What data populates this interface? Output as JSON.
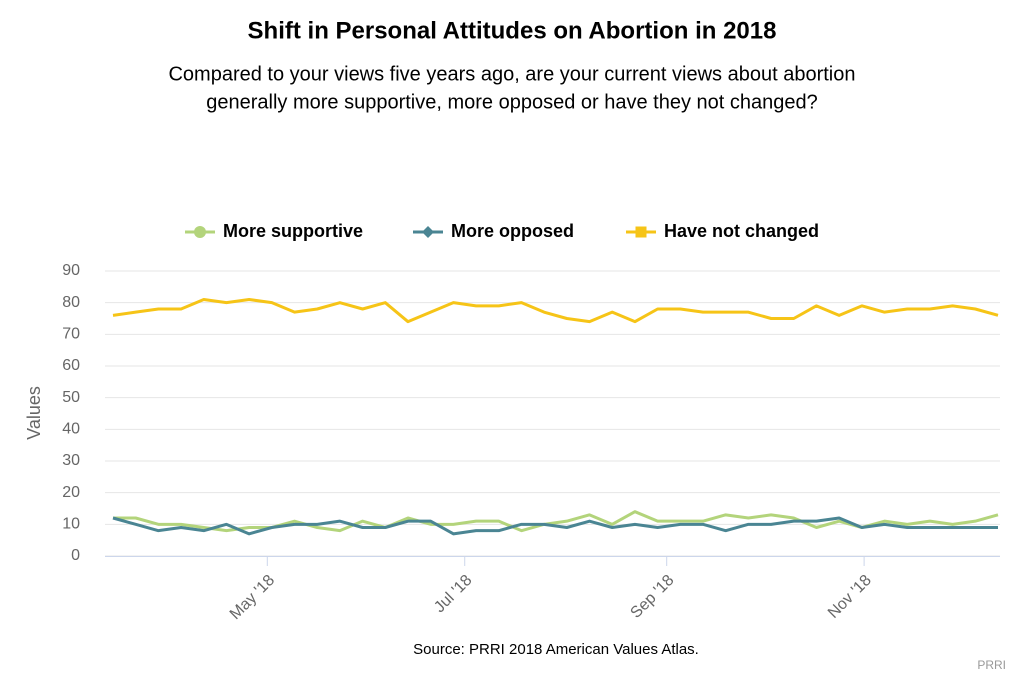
{
  "chart_data": {
    "type": "line",
    "title": "Shift in Personal Attitudes on Abortion in 2018",
    "subtitle": [
      "Compared to your views five years ago, are your current views about abortion",
      "generally more supportive, more opposed or have they not changed?"
    ],
    "y_label": "Values",
    "source": "Source: PRRI 2018 American Values Atlas.",
    "credit": "PRRI",
    "categories": [
      null,
      null,
      null,
      null,
      null,
      null,
      null,
      null,
      null,
      null,
      null,
      null,
      null,
      null,
      null,
      null,
      null,
      null,
      null,
      null,
      null,
      null,
      null,
      null,
      null,
      null,
      null,
      null,
      null,
      null,
      null,
      null,
      null,
      null,
      null,
      null,
      null,
      null,
      null,
      null
    ],
    "xticks": [
      {
        "value": 6.8,
        "label": "May '18"
      },
      {
        "value": 15.5,
        "label": "Jul '18"
      },
      {
        "value": 24.4,
        "label": "Sep '18"
      },
      {
        "value": 33.1,
        "label": "Nov '18"
      }
    ],
    "ylim": [
      0,
      90
    ],
    "yticks": [
      0,
      10,
      20,
      30,
      40,
      50,
      60,
      70,
      80,
      90
    ],
    "legend": "top",
    "series": [
      {
        "name": "More supportive",
        "color": "#b3d47b",
        "marker": "circle",
        "values": [
          12,
          12,
          10,
          10,
          9,
          8,
          9,
          9,
          11,
          9,
          8,
          11,
          9,
          12,
          10,
          10,
          11,
          11,
          8,
          10,
          11,
          13,
          10,
          14,
          11,
          11,
          11,
          13,
          12,
          13,
          12,
          9,
          11,
          9,
          11,
          10,
          11,
          10,
          11,
          13
        ]
      },
      {
        "name": "More opposed",
        "color": "#4a8593",
        "marker": "diamond",
        "values": [
          12,
          10,
          8,
          9,
          8,
          10,
          7,
          9,
          10,
          10,
          11,
          9,
          9,
          11,
          11,
          7,
          8,
          8,
          10,
          10,
          9,
          11,
          9,
          10,
          9,
          10,
          10,
          8,
          10,
          10,
          11,
          11,
          12,
          9,
          10,
          9,
          9,
          9,
          9,
          9
        ]
      },
      {
        "name": "Have not changed",
        "color": "#f6c417",
        "marker": "square",
        "values": [
          76,
          77,
          78,
          78,
          81,
          80,
          81,
          80,
          77,
          78,
          80,
          78,
          80,
          74,
          77,
          80,
          79,
          79,
          80,
          77,
          75,
          74,
          77,
          74,
          78,
          78,
          77,
          77,
          77,
          75,
          75,
          79,
          76,
          79,
          77,
          78,
          78,
          79,
          78,
          76
        ]
      }
    ]
  }
}
